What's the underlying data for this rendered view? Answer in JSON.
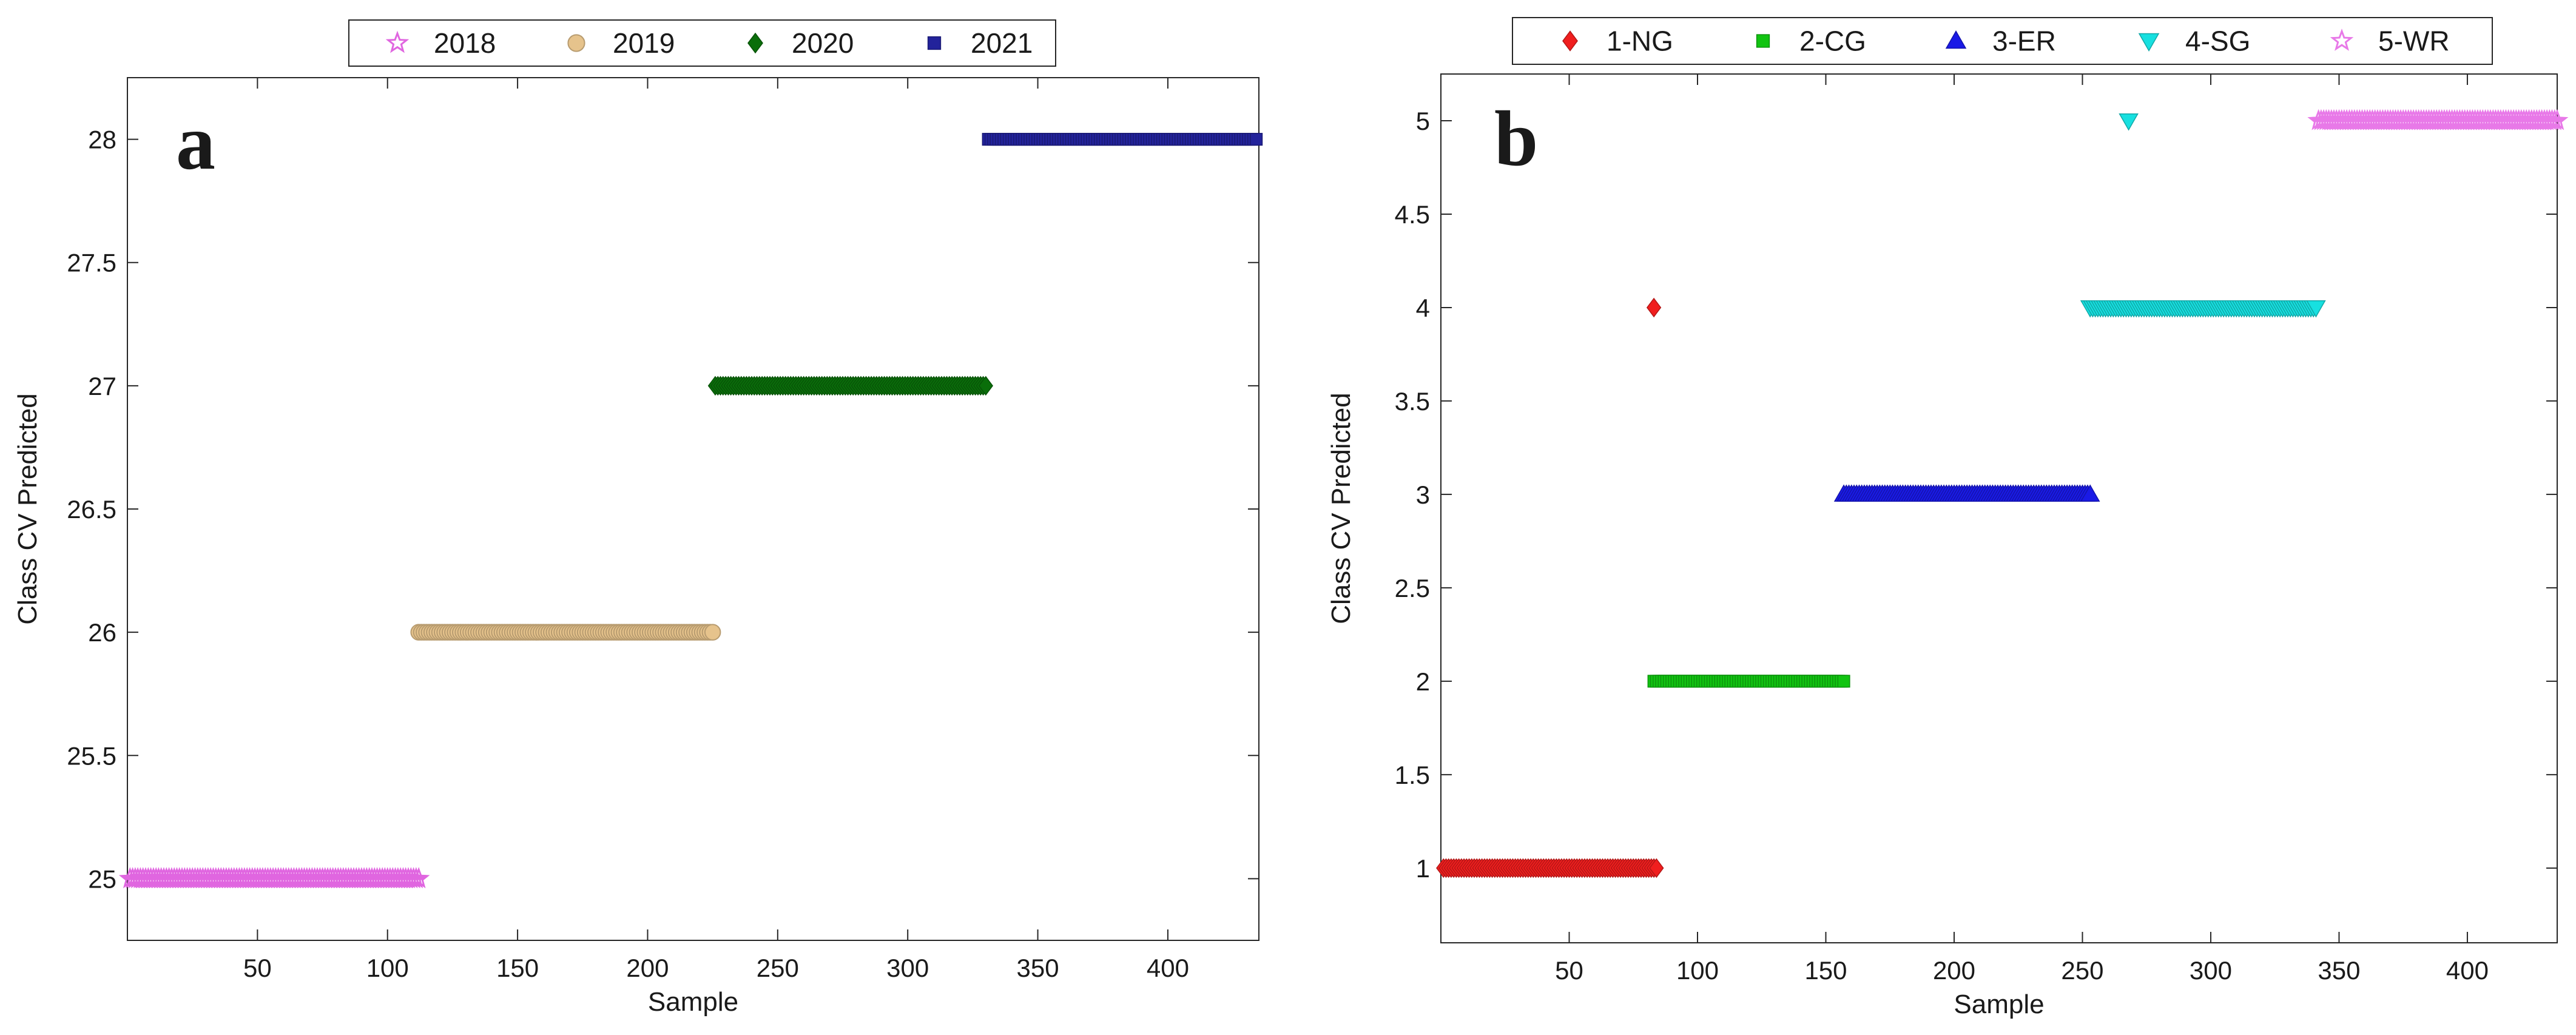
{
  "chart_data": [
    {
      "type": "scatter",
      "panel_label": "a",
      "xlabel": "Sample",
      "ylabel": "Class CV Predicted",
      "xlim": [
        0,
        435
      ],
      "ylim": [
        24.75,
        28.25
      ],
      "xticks": [
        50,
        100,
        150,
        200,
        250,
        300,
        350,
        400
      ],
      "xtick_labels": [
        "50",
        "100",
        "150",
        "200",
        "250",
        "300",
        "350",
        "400"
      ],
      "yticks": [
        25,
        25.5,
        26,
        26.5,
        27,
        27.5,
        28
      ],
      "ytick_labels": [
        "25",
        "25.5",
        "26",
        "26.5",
        "27",
        "27.5",
        "28"
      ],
      "grid": false,
      "legend_position": "top-center",
      "series": [
        {
          "name": "2018",
          "marker": "star",
          "color": "#e066e0",
          "y": 25,
          "x_start": 1,
          "x_end": 112
        },
        {
          "name": "2019",
          "marker": "circle",
          "color": "#e6c38c",
          "y": 26,
          "x_start": 112,
          "x_end": 225
        },
        {
          "name": "2020",
          "marker": "diamond",
          "color": "#0a6e0a",
          "y": 27,
          "x_start": 226,
          "x_end": 330
        },
        {
          "name": "2021",
          "marker": "square",
          "color": "#23239b",
          "y": 28,
          "x_start": 331,
          "x_end": 434
        }
      ]
    },
    {
      "type": "scatter",
      "panel_label": "b",
      "xlabel": "Sample",
      "ylabel": "Class CV Predicted",
      "xlim": [
        0,
        435
      ],
      "ylim": [
        0.6,
        5.25
      ],
      "xticks": [
        50,
        100,
        150,
        200,
        250,
        300,
        350,
        400
      ],
      "xtick_labels": [
        "50",
        "100",
        "150",
        "200",
        "250",
        "300",
        "350",
        "400"
      ],
      "yticks": [
        1,
        1.5,
        2,
        2.5,
        3,
        3.5,
        4,
        4.5,
        5
      ],
      "ytick_labels": [
        "1",
        "1.5",
        "2",
        "2.5",
        "3",
        "3.5",
        "4",
        "4.5",
        "5"
      ],
      "grid": false,
      "legend_position": "top-center",
      "series": [
        {
          "name": "1-NG",
          "marker": "diamond",
          "color": "#f01e1e",
          "y": 1,
          "x_start": 1,
          "x_end": 84,
          "outliers": [
            {
              "x": 83,
              "y": 4
            }
          ]
        },
        {
          "name": "2-CG",
          "marker": "square",
          "color": "#11c411",
          "y": 2,
          "x_start": 83,
          "x_end": 157
        },
        {
          "name": "3-ER",
          "marker": "triangle-up",
          "color": "#1a1ae6",
          "y": 3,
          "x_start": 157,
          "x_end": 253
        },
        {
          "name": "4-SG",
          "marker": "triangle-down",
          "color": "#17e0e0",
          "y": 4,
          "x_start": 253,
          "x_end": 341,
          "outliers": [
            {
              "x": 268,
              "y": 5
            }
          ]
        },
        {
          "name": "5-WR",
          "marker": "star",
          "color": "#e879e8",
          "y": 5,
          "x_start": 342,
          "x_end": 435
        }
      ]
    }
  ]
}
